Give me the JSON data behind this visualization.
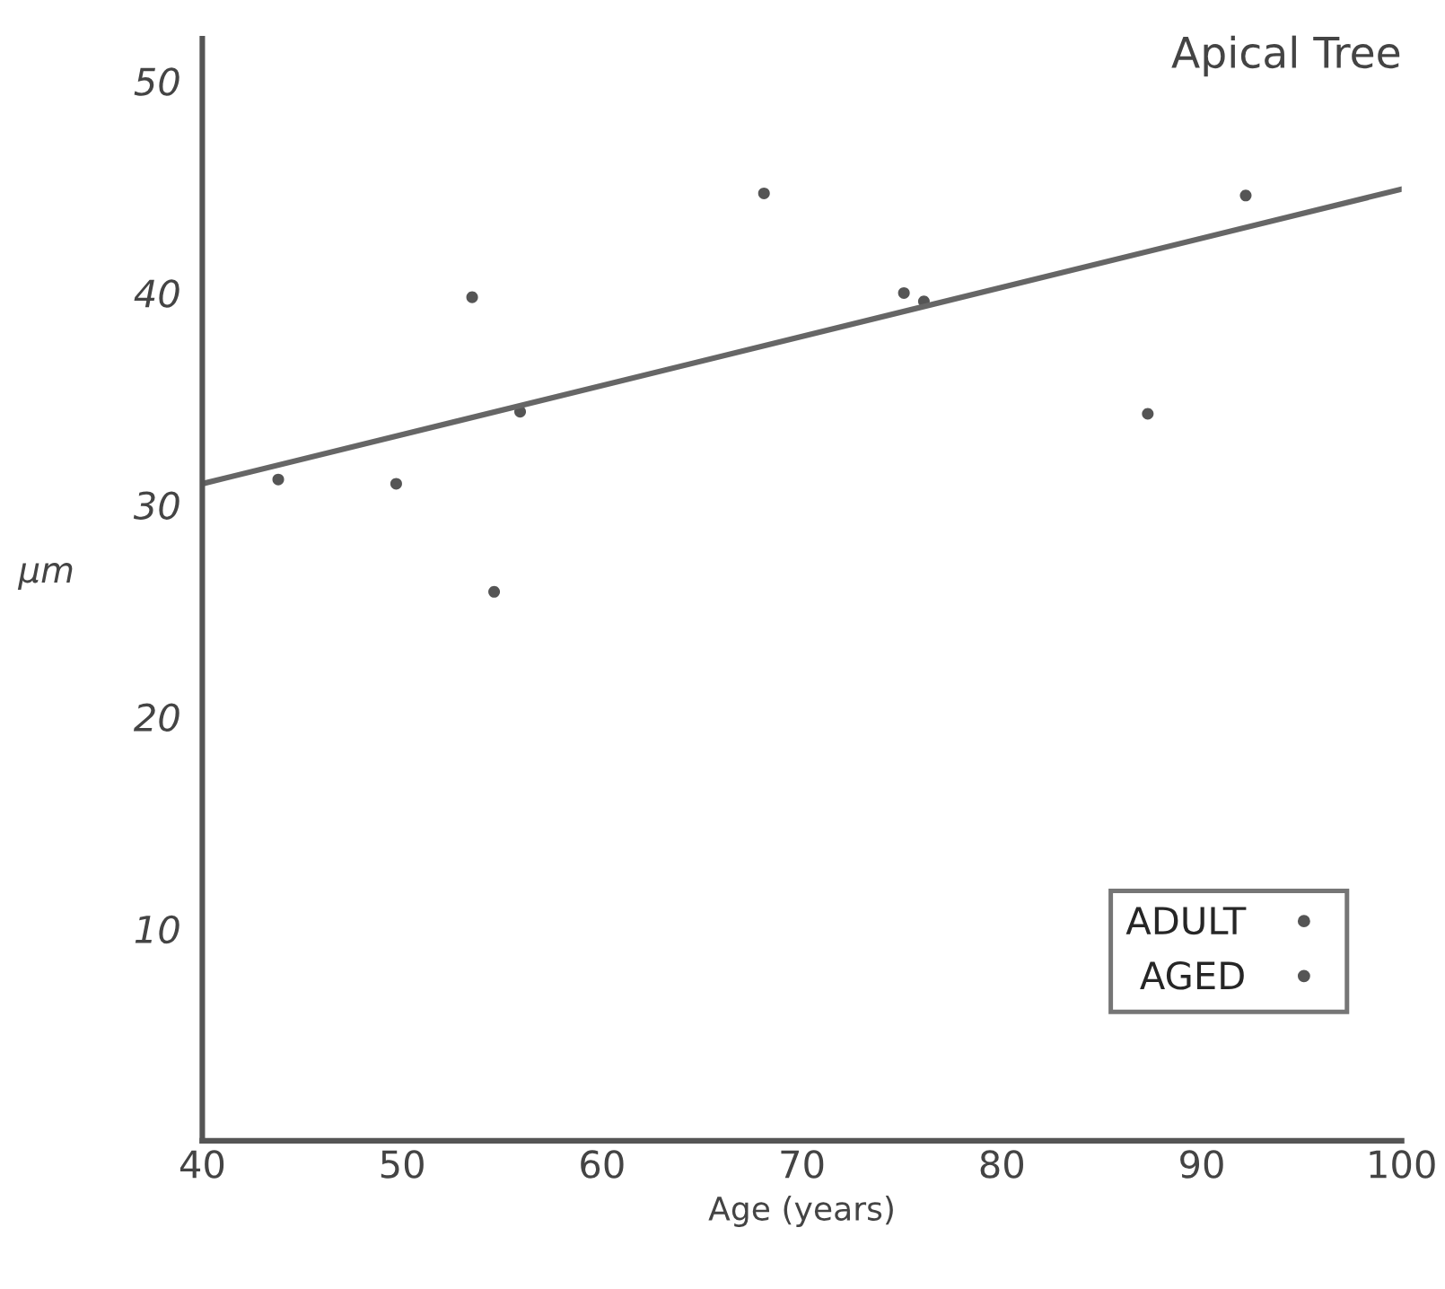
{
  "chart_data": {
    "type": "scatter",
    "title": "Apical Tree",
    "xlabel": "Age (years)",
    "ylabel": "μm",
    "xlim": [
      40,
      100
    ],
    "xticks": [
      40,
      50,
      60,
      70,
      80,
      90,
      100
    ],
    "ylim": [
      0,
      52
    ],
    "yticks": [
      10,
      20,
      30,
      40,
      50
    ],
    "grid": false,
    "legend": "bottom right",
    "series": [
      {
        "name": "ADULT",
        "color": "#555555",
        "marker": "circle",
        "x": [
          43.8,
          49.7,
          53.5,
          54.6,
          55.9
        ],
        "values": [
          31.2,
          31.0,
          39.8,
          25.9,
          34.4
        ]
      },
      {
        "name": "AGED",
        "color": "#555555",
        "marker": "circle",
        "x": [
          68.1,
          75.1,
          76.1,
          87.3,
          92.2
        ],
        "values": [
          44.7,
          40.0,
          39.6,
          34.3,
          44.6
        ]
      },
      {
        "type": "line",
        "color": "#666666",
        "x": [
          40,
          100
        ],
        "values": [
          31.0,
          44.9
        ]
      }
    ]
  }
}
